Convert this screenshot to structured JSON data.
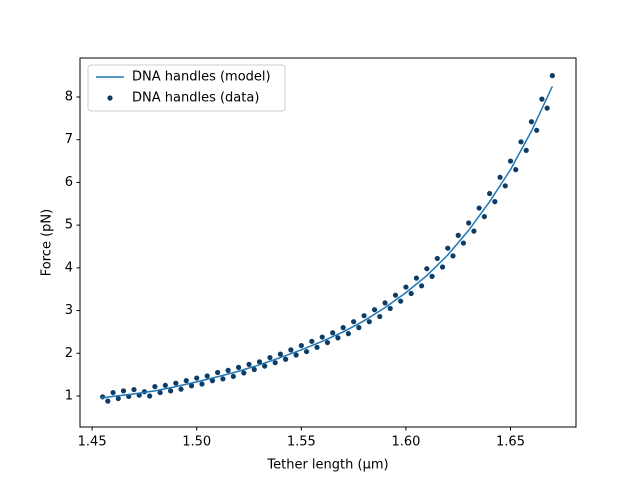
{
  "chart_data": {
    "type": "line",
    "x_label": "Tether length (μm)",
    "y_label": "Force (pN)",
    "xlim": [
      1.4442,
      1.6813
    ],
    "ylim": [
      0.274,
      8.913
    ],
    "xticks": [
      1.45,
      {
        "value": 1.5,
        "label": "1.50"
      },
      1.55,
      {
        "value": 1.6,
        "label": "1.60"
      },
      1.65
    ],
    "yticks": [
      1,
      2,
      3,
      4,
      5,
      6,
      7,
      8
    ],
    "legend": "upper left",
    "series": [
      {
        "name": "DNA handles (model)",
        "type": "line",
        "color": "#1f77b4",
        "x": [
          1.454,
          1.46,
          1.47,
          1.48,
          1.49,
          1.5,
          1.51,
          1.52,
          1.53,
          1.54,
          1.55,
          1.56,
          1.57,
          1.58,
          1.59,
          1.6,
          1.61,
          1.62,
          1.63,
          1.64,
          1.65,
          1.66,
          1.67
        ],
        "values": [
          0.95,
          0.99,
          1.05,
          1.12,
          1.22,
          1.33,
          1.45,
          1.58,
          1.73,
          1.9,
          2.08,
          2.28,
          2.5,
          2.76,
          3.07,
          3.42,
          3.82,
          4.3,
          4.88,
          5.55,
          6.3,
          7.2,
          8.25
        ]
      },
      {
        "name": "DNA handles (data)",
        "type": "scatter",
        "color": "#0d3d66",
        "x": [
          1.455,
          1.4575,
          1.46,
          1.4625,
          1.465,
          1.4675,
          1.47,
          1.4725,
          1.475,
          1.4775,
          1.48,
          1.4825,
          1.485,
          1.4875,
          1.49,
          1.4925,
          1.495,
          1.4975,
          1.5,
          1.5025,
          1.505,
          1.5075,
          1.51,
          1.5125,
          1.515,
          1.5175,
          1.52,
          1.5225,
          1.525,
          1.5275,
          1.53,
          1.5325,
          1.535,
          1.5375,
          1.54,
          1.5425,
          1.545,
          1.5475,
          1.55,
          1.5525,
          1.555,
          1.5575,
          1.56,
          1.5625,
          1.565,
          1.5675,
          1.57,
          1.5725,
          1.575,
          1.5775,
          1.58,
          1.5825,
          1.585,
          1.5875,
          1.59,
          1.5925,
          1.595,
          1.5975,
          1.6,
          1.6025,
          1.605,
          1.6075,
          1.61,
          1.6125,
          1.615,
          1.6175,
          1.62,
          1.6225,
          1.625,
          1.6275,
          1.63,
          1.6325,
          1.635,
          1.6375,
          1.64,
          1.6425,
          1.645,
          1.6475,
          1.65,
          1.6525,
          1.655,
          1.6575,
          1.66,
          1.6625,
          1.665,
          1.6675,
          1.67
        ],
        "values": [
          0.98,
          0.88,
          1.08,
          0.94,
          1.12,
          0.99,
          1.15,
          1.02,
          1.1,
          1.0,
          1.22,
          1.08,
          1.25,
          1.12,
          1.3,
          1.16,
          1.36,
          1.24,
          1.42,
          1.28,
          1.47,
          1.36,
          1.55,
          1.4,
          1.6,
          1.46,
          1.67,
          1.54,
          1.74,
          1.62,
          1.8,
          1.7,
          1.9,
          1.78,
          1.98,
          1.86,
          2.08,
          1.96,
          2.18,
          2.04,
          2.28,
          2.14,
          2.38,
          2.25,
          2.48,
          2.36,
          2.6,
          2.46,
          2.74,
          2.6,
          2.88,
          2.74,
          3.02,
          2.86,
          3.18,
          3.05,
          3.36,
          3.22,
          3.55,
          3.4,
          3.76,
          3.58,
          3.98,
          3.8,
          4.22,
          4.02,
          4.46,
          4.28,
          4.76,
          4.58,
          5.05,
          4.86,
          5.4,
          5.2,
          5.74,
          5.55,
          6.12,
          5.92,
          6.5,
          6.3,
          6.95,
          6.75,
          7.42,
          7.22,
          7.95,
          7.74,
          8.5
        ]
      }
    ]
  }
}
